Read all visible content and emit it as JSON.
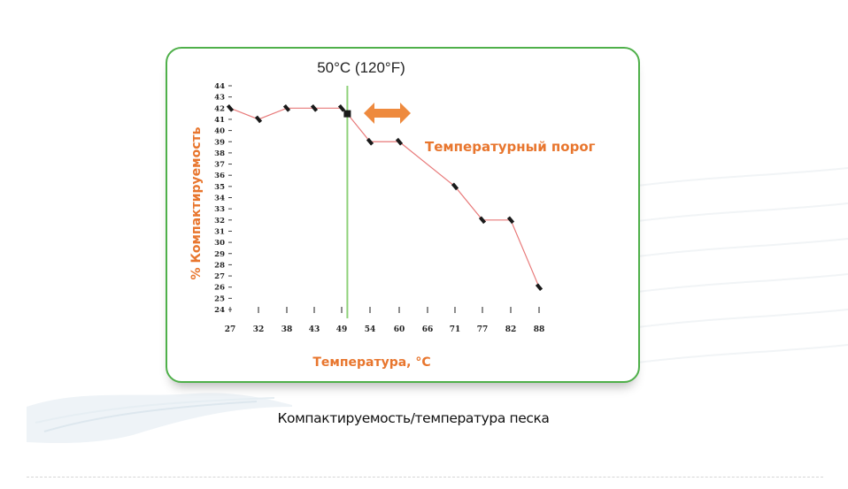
{
  "slide": {
    "caption": "Компактируемость/температура песка"
  },
  "colors": {
    "frame": "#4fb04a",
    "line": "#e87a7a",
    "marker": "#1a1a1a",
    "threshold_line": "#8fd17a",
    "accent_label": "#e8762e",
    "arrow": "#ee8a3e"
  },
  "chart_data": {
    "type": "line",
    "ylabel": "% Компактируемость",
    "xlabel": "Температура, °С",
    "x": [
      27,
      32,
      38,
      43,
      49,
      54,
      60,
      66,
      71,
      77,
      82,
      88
    ],
    "y_range": [
      24,
      44
    ],
    "y_ticks": [
      24,
      25,
      26,
      27,
      28,
      29,
      30,
      31,
      32,
      33,
      34,
      35,
      36,
      37,
      38,
      39,
      40,
      41,
      42,
      43,
      44
    ],
    "series": [
      {
        "points": [
          {
            "x": 27,
            "y": 42
          },
          {
            "x": 32,
            "y": 41
          },
          {
            "x": 38,
            "y": 42
          },
          {
            "x": 43,
            "y": 42
          },
          {
            "x": 49,
            "y": 42
          },
          {
            "x": 50,
            "y": 41.5
          },
          {
            "x": 54,
            "y": 39
          },
          {
            "x": 60,
            "y": 39
          },
          {
            "x": 71,
            "y": 35
          },
          {
            "x": 77,
            "y": 32
          },
          {
            "x": 82,
            "y": 32
          },
          {
            "x": 88,
            "y": 26
          }
        ]
      }
    ],
    "threshold": {
      "x": 50,
      "label": "50°C (120°F)"
    },
    "annotation": "Температурный порог",
    "grid": false
  }
}
